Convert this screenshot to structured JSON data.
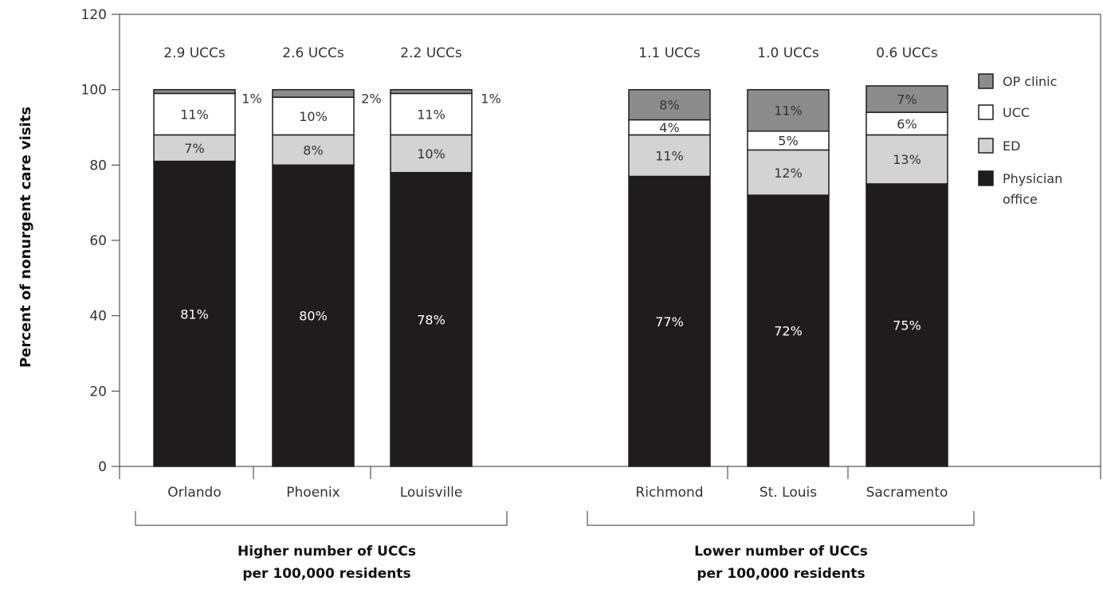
{
  "chart_data": {
    "type": "bar",
    "stacked": true,
    "ylabel": "Percent of nonurgent care visits",
    "ylim": [
      0,
      120
    ],
    "yticks": [
      0,
      20,
      40,
      60,
      80,
      100,
      120
    ],
    "categories": [
      "Orlando",
      "Phoenix",
      "Louisville",
      "Richmond",
      "St. Louis",
      "Sacramento"
    ],
    "ucc_labels": [
      "2.9 UCCs",
      "2.6 UCCs",
      "2.2 UCCs",
      "1.1 UCCs",
      "1.0 UCCs",
      "0.6 UCCs"
    ],
    "groups": [
      {
        "label_line1": "Higher number of UCCs",
        "label_line2": "per 100,000 residents",
        "categories": [
          "Orlando",
          "Phoenix",
          "Louisville"
        ]
      },
      {
        "label_line1": "Lower number of UCCs",
        "label_line2": "per 100,000 residents",
        "categories": [
          "Richmond",
          "St. Louis",
          "Sacramento"
        ]
      }
    ],
    "series": [
      {
        "name": "Physician office",
        "legend_line1": "Physician",
        "legend_line2": "office",
        "color": "#1f1c1d",
        "label_color": "#ffffff",
        "values": [
          81,
          80,
          78,
          77,
          72,
          75
        ],
        "labels": [
          "81%",
          "80%",
          "78%",
          "77%",
          "72%",
          "75%"
        ]
      },
      {
        "name": "ED",
        "legend_line1": "ED",
        "legend_line2": "",
        "color": "#d3d3d3",
        "label_color": "#333333",
        "values": [
          7,
          8,
          10,
          11,
          12,
          13
        ],
        "labels": [
          "7%",
          "8%",
          "10%",
          "11%",
          "12%",
          "13%"
        ]
      },
      {
        "name": "UCC",
        "legend_line1": "UCC",
        "legend_line2": "",
        "color": "#ffffff",
        "label_color": "#333333",
        "values": [
          11,
          10,
          11,
          4,
          5,
          6
        ],
        "labels": [
          "11%",
          "10%",
          "11%",
          "4%",
          "5%",
          "6%"
        ]
      },
      {
        "name": "OP clinic",
        "legend_line1": "OP clinic",
        "legend_line2": "",
        "color": "#8c8c8c",
        "label_color": "#333333",
        "values": [
          1,
          2,
          1,
          8,
          11,
          7
        ],
        "labels": [
          "1%",
          "2%",
          "1%",
          "8%",
          "11%",
          "7%"
        ]
      }
    ],
    "legend_order": [
      "OP clinic",
      "UCC",
      "ED",
      "Physician office"
    ],
    "legend_position": "right",
    "grid": false
  }
}
